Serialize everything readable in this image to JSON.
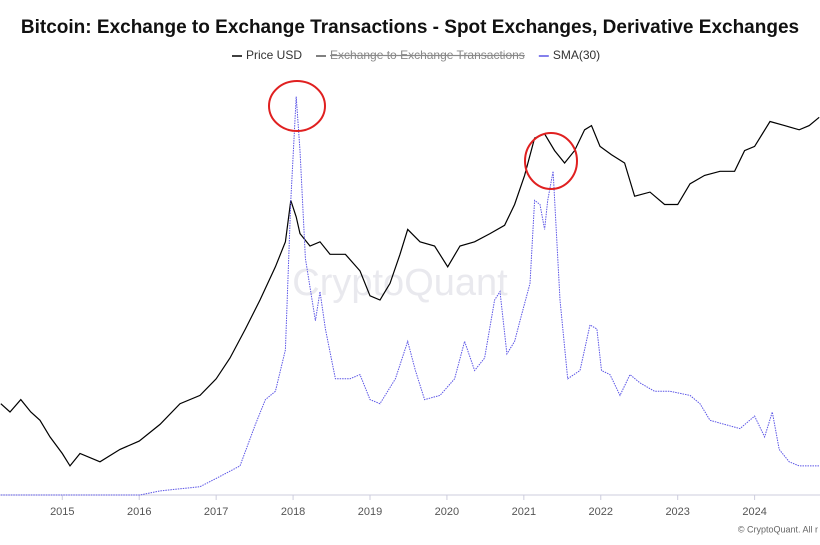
{
  "chart_data": {
    "type": "line",
    "title": "Bitcoin: Exchange to Exchange Transactions - Spot Exchanges, Derivative Exchanges",
    "watermark": "CryptoQuant",
    "credit": "© CryptoQuant. All r",
    "xlim": [
      2014.19,
      2024.85
    ],
    "xticks": [
      2015,
      2016,
      2017,
      2018,
      2019,
      2020,
      2021,
      2022,
      2023,
      2024
    ],
    "ylim": [
      0,
      100
    ],
    "series": [
      {
        "name": "Price USD",
        "color": "#000000",
        "dashed": false,
        "x": [
          2014.2,
          2014.32,
          2014.46,
          2014.59,
          2014.71,
          2014.84,
          2015.0,
          2015.1,
          2015.23,
          2015.49,
          2015.75,
          2016.0,
          2016.27,
          2016.53,
          2016.79,
          2017.0,
          2017.18,
          2017.38,
          2017.57,
          2017.77,
          2017.9,
          2017.97,
          2018.04,
          2018.09,
          2018.22,
          2018.35,
          2018.48,
          2018.68,
          2018.87,
          2019.0,
          2019.13,
          2019.26,
          2019.39,
          2019.49,
          2019.65,
          2019.84,
          2020.01,
          2020.17,
          2020.36,
          2020.56,
          2020.75,
          2020.88,
          2021.01,
          2021.14,
          2021.27,
          2021.4,
          2021.53,
          2021.66,
          2021.79,
          2021.88,
          2021.99,
          2022.14,
          2022.31,
          2022.44,
          2022.64,
          2022.83,
          2023.0,
          2023.16,
          2023.35,
          2023.55,
          2023.74,
          2023.87,
          2024.0,
          2024.2,
          2024.39,
          2024.58,
          2024.71,
          2024.84
        ],
        "values": [
          22,
          20,
          23,
          20,
          18,
          14,
          10,
          7,
          10,
          8,
          11,
          13,
          17,
          22,
          24,
          28,
          33,
          40,
          47,
          55,
          61,
          71,
          67,
          63,
          60,
          61,
          58,
          58,
          54,
          48,
          47,
          51,
          58,
          64,
          61,
          60,
          55,
          60,
          61,
          63,
          65,
          70,
          77,
          86,
          87,
          83,
          80,
          83,
          88,
          89,
          84,
          82,
          80,
          72,
          73,
          70,
          70,
          75,
          77,
          78,
          78,
          83,
          84,
          90,
          89,
          88,
          89,
          91
        ]
      },
      {
        "name": "Exchange to Exchange Transactions",
        "color": "#555555",
        "visible": false
      },
      {
        "name": "SMA(30)",
        "color": "#5b55e6",
        "dashed": true,
        "x": [
          2014.2,
          2015.49,
          2016.01,
          2016.27,
          2016.79,
          2017.0,
          2017.31,
          2017.51,
          2017.64,
          2017.77,
          2017.9,
          2017.97,
          2018.04,
          2018.09,
          2018.16,
          2018.29,
          2018.35,
          2018.42,
          2018.55,
          2018.74,
          2018.87,
          2019.0,
          2019.13,
          2019.33,
          2019.49,
          2019.59,
          2019.71,
          2019.91,
          2020.1,
          2020.23,
          2020.36,
          2020.49,
          2020.62,
          2020.69,
          2020.78,
          2020.88,
          2020.95,
          2021.08,
          2021.14,
          2021.21,
          2021.27,
          2021.31,
          2021.38,
          2021.47,
          2021.57,
          2021.73,
          2021.86,
          2021.95,
          2022.01,
          2022.12,
          2022.25,
          2022.38,
          2022.51,
          2022.7,
          2022.9,
          2023.16,
          2023.29,
          2023.42,
          2023.61,
          2023.81,
          2024.0,
          2024.13,
          2024.23,
          2024.32,
          2024.45,
          2024.58,
          2024.84
        ],
        "values": [
          0,
          0,
          0,
          1,
          2,
          4,
          7,
          17,
          23,
          25,
          35,
          71,
          96,
          83,
          57,
          42,
          49,
          40,
          28,
          28,
          29,
          23,
          22,
          28,
          37,
          30,
          23,
          24,
          28,
          37,
          30,
          33,
          47,
          49,
          34,
          37,
          42,
          51,
          71,
          70,
          64,
          71,
          78,
          47,
          28,
          30,
          41,
          40,
          30,
          29,
          24,
          29,
          27,
          25,
          25,
          24,
          22,
          18,
          17,
          16,
          19,
          14,
          20,
          11,
          8,
          7,
          7
        ]
      }
    ]
  }
}
